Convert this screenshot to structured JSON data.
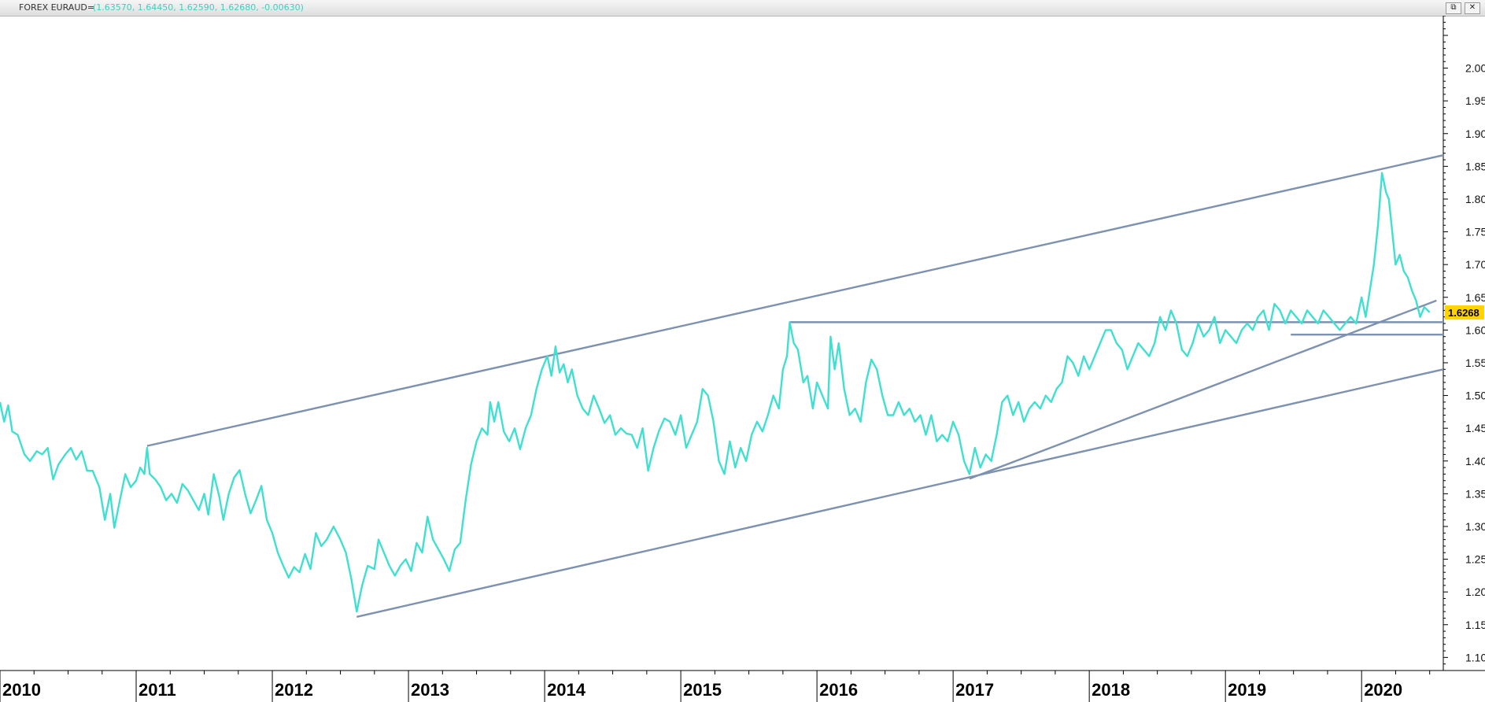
{
  "window": {
    "symbol": "FOREX EURAUD=",
    "quote": "(1.63570, 1.64450, 1.62590, 1.62680, -0.00630)",
    "buttons": [
      {
        "icon": "restore-icon",
        "glyph": "⧉"
      },
      {
        "icon": "close-icon",
        "glyph": "✕"
      }
    ]
  },
  "colors": {
    "price": "#40e0d0",
    "trendline": "#7d92b0",
    "tag_bg": "#ffd400",
    "axis": "#000000"
  },
  "chart_data": {
    "type": "line",
    "title": "",
    "ylim": [
      1.08,
      2.08
    ],
    "xlim": [
      2010.0,
      2020.6
    ],
    "yticks": [
      "1.10",
      "1.15",
      "1.20",
      "1.25",
      "1.30",
      "1.35",
      "1.40",
      "1.45",
      "1.50",
      "1.55",
      "1.60",
      "1.65",
      "1.70",
      "1.75",
      "1.80",
      "1.85",
      "1.90",
      "1.95",
      "2.00"
    ],
    "xticks": [
      "2010",
      "2011",
      "2012",
      "2013",
      "2014",
      "2015",
      "2016",
      "2017",
      "2018",
      "2019",
      "2020"
    ],
    "last_price": "1.6268",
    "series": [
      {
        "points": [
          [
            2010.0,
            1.49
          ],
          [
            2010.03,
            1.46
          ],
          [
            2010.06,
            1.485
          ],
          [
            2010.09,
            1.445
          ],
          [
            2010.13,
            1.44
          ],
          [
            2010.18,
            1.41
          ],
          [
            2010.22,
            1.4
          ],
          [
            2010.27,
            1.415
          ],
          [
            2010.31,
            1.41
          ],
          [
            2010.35,
            1.42
          ],
          [
            2010.39,
            1.372
          ],
          [
            2010.43,
            1.395
          ],
          [
            2010.48,
            1.41
          ],
          [
            2010.52,
            1.42
          ],
          [
            2010.56,
            1.402
          ],
          [
            2010.6,
            1.415
          ],
          [
            2010.64,
            1.385
          ],
          [
            2010.68,
            1.385
          ],
          [
            2010.73,
            1.36
          ],
          [
            2010.77,
            1.31
          ],
          [
            2010.81,
            1.35
          ],
          [
            2010.84,
            1.298
          ],
          [
            2010.88,
            1.34
          ],
          [
            2010.92,
            1.38
          ],
          [
            2010.96,
            1.36
          ],
          [
            2011.0,
            1.37
          ],
          [
            2011.03,
            1.39
          ],
          [
            2011.06,
            1.38
          ],
          [
            2011.08,
            1.42
          ],
          [
            2011.1,
            1.38
          ],
          [
            2011.14,
            1.372
          ],
          [
            2011.18,
            1.36
          ],
          [
            2011.22,
            1.34
          ],
          [
            2011.26,
            1.35
          ],
          [
            2011.3,
            1.336
          ],
          [
            2011.34,
            1.365
          ],
          [
            2011.38,
            1.355
          ],
          [
            2011.42,
            1.34
          ],
          [
            2011.46,
            1.325
          ],
          [
            2011.5,
            1.35
          ],
          [
            2011.53,
            1.318
          ],
          [
            2011.57,
            1.38
          ],
          [
            2011.61,
            1.346
          ],
          [
            2011.64,
            1.31
          ],
          [
            2011.68,
            1.35
          ],
          [
            2011.72,
            1.375
          ],
          [
            2011.76,
            1.386
          ],
          [
            2011.8,
            1.35
          ],
          [
            2011.84,
            1.32
          ],
          [
            2011.88,
            1.34
          ],
          [
            2011.92,
            1.362
          ],
          [
            2011.96,
            1.31
          ],
          [
            2012.0,
            1.29
          ],
          [
            2012.04,
            1.26
          ],
          [
            2012.08,
            1.24
          ],
          [
            2012.12,
            1.222
          ],
          [
            2012.16,
            1.238
          ],
          [
            2012.2,
            1.23
          ],
          [
            2012.24,
            1.258
          ],
          [
            2012.28,
            1.235
          ],
          [
            2012.32,
            1.29
          ],
          [
            2012.36,
            1.27
          ],
          [
            2012.4,
            1.28
          ],
          [
            2012.45,
            1.3
          ],
          [
            2012.5,
            1.28
          ],
          [
            2012.54,
            1.26
          ],
          [
            2012.58,
            1.22
          ],
          [
            2012.62,
            1.17
          ],
          [
            2012.66,
            1.21
          ],
          [
            2012.7,
            1.24
          ],
          [
            2012.75,
            1.235
          ],
          [
            2012.78,
            1.28
          ],
          [
            2012.82,
            1.26
          ],
          [
            2012.86,
            1.24
          ],
          [
            2012.9,
            1.225
          ],
          [
            2012.94,
            1.24
          ],
          [
            2012.98,
            1.25
          ],
          [
            2013.02,
            1.232
          ],
          [
            2013.06,
            1.275
          ],
          [
            2013.1,
            1.26
          ],
          [
            2013.14,
            1.315
          ],
          [
            2013.18,
            1.28
          ],
          [
            2013.22,
            1.265
          ],
          [
            2013.26,
            1.25
          ],
          [
            2013.3,
            1.232
          ],
          [
            2013.34,
            1.265
          ],
          [
            2013.38,
            1.275
          ],
          [
            2013.42,
            1.34
          ],
          [
            2013.46,
            1.395
          ],
          [
            2013.5,
            1.43
          ],
          [
            2013.54,
            1.45
          ],
          [
            2013.58,
            1.44
          ],
          [
            2013.6,
            1.49
          ],
          [
            2013.63,
            1.46
          ],
          [
            2013.66,
            1.49
          ],
          [
            2013.7,
            1.445
          ],
          [
            2013.74,
            1.43
          ],
          [
            2013.78,
            1.45
          ],
          [
            2013.82,
            1.418
          ],
          [
            2013.86,
            1.45
          ],
          [
            2013.9,
            1.47
          ],
          [
            2013.94,
            1.51
          ],
          [
            2013.98,
            1.54
          ],
          [
            2014.02,
            1.56
          ],
          [
            2014.05,
            1.53
          ],
          [
            2014.08,
            1.575
          ],
          [
            2014.11,
            1.535
          ],
          [
            2014.14,
            1.548
          ],
          [
            2014.17,
            1.52
          ],
          [
            2014.2,
            1.54
          ],
          [
            2014.24,
            1.5
          ],
          [
            2014.28,
            1.48
          ],
          [
            2014.32,
            1.47
          ],
          [
            2014.36,
            1.5
          ],
          [
            2014.4,
            1.48
          ],
          [
            2014.44,
            1.458
          ],
          [
            2014.48,
            1.47
          ],
          [
            2014.52,
            1.44
          ],
          [
            2014.56,
            1.45
          ],
          [
            2014.6,
            1.442
          ],
          [
            2014.64,
            1.44
          ],
          [
            2014.68,
            1.42
          ],
          [
            2014.72,
            1.45
          ],
          [
            2014.76,
            1.385
          ],
          [
            2014.8,
            1.42
          ],
          [
            2014.84,
            1.446
          ],
          [
            2014.88,
            1.465
          ],
          [
            2014.92,
            1.46
          ],
          [
            2014.96,
            1.44
          ],
          [
            2015.0,
            1.47
          ],
          [
            2015.04,
            1.42
          ],
          [
            2015.08,
            1.44
          ],
          [
            2015.12,
            1.46
          ],
          [
            2015.16,
            1.51
          ],
          [
            2015.2,
            1.5
          ],
          [
            2015.24,
            1.46
          ],
          [
            2015.28,
            1.4
          ],
          [
            2015.32,
            1.38
          ],
          [
            2015.36,
            1.43
          ],
          [
            2015.4,
            1.39
          ],
          [
            2015.44,
            1.42
          ],
          [
            2015.48,
            1.4
          ],
          [
            2015.52,
            1.44
          ],
          [
            2015.56,
            1.46
          ],
          [
            2015.6,
            1.445
          ],
          [
            2015.64,
            1.47
          ],
          [
            2015.68,
            1.5
          ],
          [
            2015.72,
            1.48
          ],
          [
            2015.75,
            1.54
          ],
          [
            2015.78,
            1.56
          ],
          [
            2015.8,
            1.612
          ],
          [
            2015.83,
            1.58
          ],
          [
            2015.86,
            1.57
          ],
          [
            2015.9,
            1.52
          ],
          [
            2015.93,
            1.53
          ],
          [
            2015.97,
            1.48
          ],
          [
            2016.0,
            1.52
          ],
          [
            2016.04,
            1.5
          ],
          [
            2016.08,
            1.48
          ],
          [
            2016.1,
            1.59
          ],
          [
            2016.13,
            1.54
          ],
          [
            2016.16,
            1.58
          ],
          [
            2016.2,
            1.51
          ],
          [
            2016.24,
            1.47
          ],
          [
            2016.28,
            1.48
          ],
          [
            2016.32,
            1.46
          ],
          [
            2016.36,
            1.52
          ],
          [
            2016.4,
            1.555
          ],
          [
            2016.44,
            1.54
          ],
          [
            2016.48,
            1.5
          ],
          [
            2016.52,
            1.47
          ],
          [
            2016.56,
            1.47
          ],
          [
            2016.6,
            1.49
          ],
          [
            2016.64,
            1.47
          ],
          [
            2016.68,
            1.48
          ],
          [
            2016.72,
            1.46
          ],
          [
            2016.76,
            1.47
          ],
          [
            2016.8,
            1.44
          ],
          [
            2016.84,
            1.47
          ],
          [
            2016.88,
            1.43
          ],
          [
            2016.92,
            1.44
          ],
          [
            2016.96,
            1.43
          ],
          [
            2017.0,
            1.46
          ],
          [
            2017.04,
            1.44
          ],
          [
            2017.08,
            1.4
          ],
          [
            2017.12,
            1.38
          ],
          [
            2017.16,
            1.42
          ],
          [
            2017.2,
            1.39
          ],
          [
            2017.24,
            1.41
          ],
          [
            2017.28,
            1.4
          ],
          [
            2017.32,
            1.44
          ],
          [
            2017.36,
            1.49
          ],
          [
            2017.4,
            1.5
          ],
          [
            2017.44,
            1.47
          ],
          [
            2017.48,
            1.49
          ],
          [
            2017.52,
            1.46
          ],
          [
            2017.56,
            1.48
          ],
          [
            2017.6,
            1.49
          ],
          [
            2017.64,
            1.48
          ],
          [
            2017.68,
            1.5
          ],
          [
            2017.72,
            1.49
          ],
          [
            2017.76,
            1.51
          ],
          [
            2017.8,
            1.52
          ],
          [
            2017.84,
            1.56
          ],
          [
            2017.88,
            1.55
          ],
          [
            2017.92,
            1.53
          ],
          [
            2017.96,
            1.56
          ],
          [
            2018.0,
            1.54
          ],
          [
            2018.04,
            1.56
          ],
          [
            2018.08,
            1.58
          ],
          [
            2018.12,
            1.6
          ],
          [
            2018.16,
            1.6
          ],
          [
            2018.2,
            1.58
          ],
          [
            2018.24,
            1.57
          ],
          [
            2018.28,
            1.54
          ],
          [
            2018.32,
            1.56
          ],
          [
            2018.36,
            1.58
          ],
          [
            2018.4,
            1.57
          ],
          [
            2018.44,
            1.56
          ],
          [
            2018.48,
            1.58
          ],
          [
            2018.52,
            1.62
          ],
          [
            2018.56,
            1.6
          ],
          [
            2018.6,
            1.63
          ],
          [
            2018.64,
            1.61
          ],
          [
            2018.68,
            1.57
          ],
          [
            2018.72,
            1.56
          ],
          [
            2018.76,
            1.58
          ],
          [
            2018.8,
            1.61
          ],
          [
            2018.84,
            1.59
          ],
          [
            2018.88,
            1.6
          ],
          [
            2018.92,
            1.62
          ],
          [
            2018.96,
            1.58
          ],
          [
            2019.0,
            1.6
          ],
          [
            2019.04,
            1.59
          ],
          [
            2019.08,
            1.58
          ],
          [
            2019.12,
            1.6
          ],
          [
            2019.16,
            1.61
          ],
          [
            2019.2,
            1.6
          ],
          [
            2019.24,
            1.62
          ],
          [
            2019.28,
            1.63
          ],
          [
            2019.32,
            1.6
          ],
          [
            2019.36,
            1.64
          ],
          [
            2019.4,
            1.63
          ],
          [
            2019.44,
            1.61
          ],
          [
            2019.48,
            1.63
          ],
          [
            2019.52,
            1.62
          ],
          [
            2019.56,
            1.61
          ],
          [
            2019.6,
            1.63
          ],
          [
            2019.64,
            1.62
          ],
          [
            2019.68,
            1.61
          ],
          [
            2019.72,
            1.63
          ],
          [
            2019.76,
            1.62
          ],
          [
            2019.8,
            1.61
          ],
          [
            2019.84,
            1.6
          ],
          [
            2019.88,
            1.61
          ],
          [
            2019.92,
            1.62
          ],
          [
            2019.96,
            1.61
          ],
          [
            2020.0,
            1.65
          ],
          [
            2020.03,
            1.62
          ],
          [
            2020.06,
            1.66
          ],
          [
            2020.09,
            1.7
          ],
          [
            2020.12,
            1.76
          ],
          [
            2020.15,
            1.84
          ],
          [
            2020.18,
            1.81
          ],
          [
            2020.2,
            1.8
          ],
          [
            2020.22,
            1.76
          ],
          [
            2020.25,
            1.7
          ],
          [
            2020.28,
            1.715
          ],
          [
            2020.31,
            1.69
          ],
          [
            2020.34,
            1.68
          ],
          [
            2020.37,
            1.66
          ],
          [
            2020.4,
            1.645
          ],
          [
            2020.43,
            1.62
          ],
          [
            2020.46,
            1.635
          ],
          [
            2020.5,
            1.627
          ]
        ]
      }
    ],
    "trendlines": [
      {
        "from": [
          2011.08,
          1.423
        ],
        "to": [
          2020.6,
          1.867
        ]
      },
      {
        "from": [
          2012.62,
          1.162
        ],
        "to": [
          2020.6,
          1.54
        ]
      },
      {
        "from": [
          2017.12,
          1.373
        ],
        "to": [
          2020.55,
          1.645
        ]
      },
      {
        "from": [
          2015.8,
          1.612
        ],
        "to": [
          2020.6,
          1.612
        ]
      },
      {
        "from": [
          2019.48,
          1.593
        ],
        "to": [
          2020.6,
          1.593
        ]
      }
    ]
  }
}
